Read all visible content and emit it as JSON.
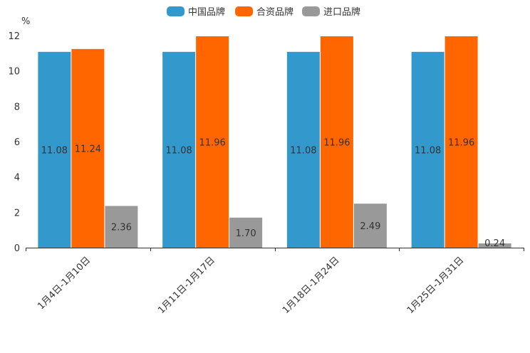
{
  "chart_data": {
    "type": "bar",
    "title": "",
    "xlabel": "",
    "ylabel": "%",
    "ylim": [
      0,
      12
    ],
    "yticks": [
      "0",
      "2",
      "4",
      "6",
      "8",
      "10",
      "12"
    ],
    "categories": [
      "1月4日-1月10日",
      "1月11日-1月17日",
      "1月18日-1月24日",
      "1月25日-1月31日"
    ],
    "series": [
      {
        "name": "中国品牌",
        "color": "#3399cc",
        "values": [
          11.08,
          11.08,
          11.08,
          11.08
        ],
        "labels": [
          "11.08",
          "11.08",
          "11.08",
          "11.08"
        ]
      },
      {
        "name": "合资品牌",
        "color": "#ff6600",
        "values": [
          11.24,
          11.96,
          11.96,
          11.96
        ],
        "labels": [
          "11.24",
          "11.96",
          "11.96",
          "11.96"
        ]
      },
      {
        "name": "进口品牌",
        "color": "#999999",
        "values": [
          2.36,
          1.7,
          2.49,
          0.24
        ],
        "labels": [
          "2.36",
          "1.70",
          "2.49",
          "0.24"
        ]
      }
    ],
    "legend_position": "top-center",
    "grid": false
  }
}
